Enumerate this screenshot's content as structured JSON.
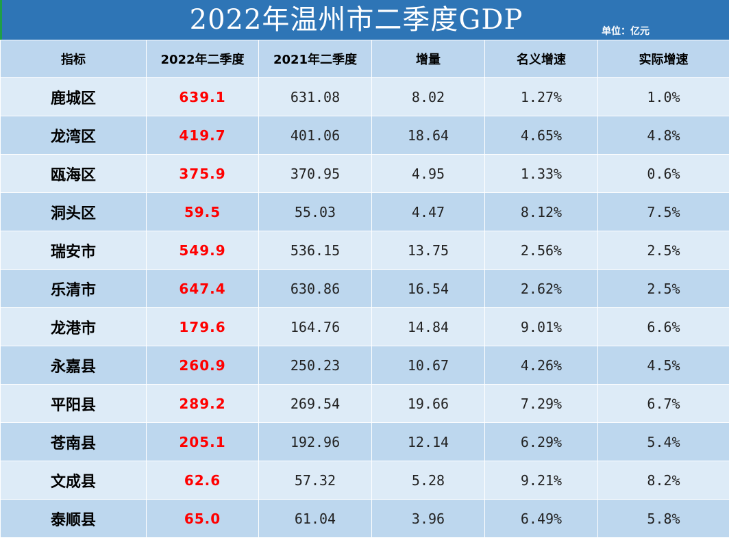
{
  "title": "2022年温州市二季度GDP",
  "unit": "单位：亿元",
  "colors": {
    "header_bar": "#2e75b6",
    "row_light": "#ddebf7",
    "row_dark": "#bdd7ee",
    "highlight": "#ff0000"
  },
  "columns": [
    "指标",
    "2022年二季度",
    "2021年二季度",
    "增量",
    "名义增速",
    "实际增速"
  ],
  "rows": [
    [
      "鹿城区",
      "639.1",
      "631.08",
      "8.02",
      "1.27%",
      "1.0%"
    ],
    [
      "龙湾区",
      "419.7",
      "401.06",
      "18.64",
      "4.65%",
      "4.8%"
    ],
    [
      "瓯海区",
      "375.9",
      "370.95",
      "4.95",
      "1.33%",
      "0.6%"
    ],
    [
      "洞头区",
      "59.5",
      "55.03",
      "4.47",
      "8.12%",
      "7.5%"
    ],
    [
      "瑞安市",
      "549.9",
      "536.15",
      "13.75",
      "2.56%",
      "2.5%"
    ],
    [
      "乐清市",
      "647.4",
      "630.86",
      "16.54",
      "2.62%",
      "2.5%"
    ],
    [
      "龙港市",
      "179.6",
      "164.76",
      "14.84",
      "9.01%",
      "6.6%"
    ],
    [
      "永嘉县",
      "260.9",
      "250.23",
      "10.67",
      "4.26%",
      "4.5%"
    ],
    [
      "平阳县",
      "289.2",
      "269.54",
      "19.66",
      "7.29%",
      "6.7%"
    ],
    [
      "苍南县",
      "205.1",
      "192.96",
      "12.14",
      "6.29%",
      "5.4%"
    ],
    [
      "文成县",
      "62.6",
      "57.32",
      "5.28",
      "9.21%",
      "8.2%"
    ],
    [
      "泰顺县",
      "65.0",
      "61.04",
      "3.96",
      "6.49%",
      "5.8%"
    ]
  ]
}
